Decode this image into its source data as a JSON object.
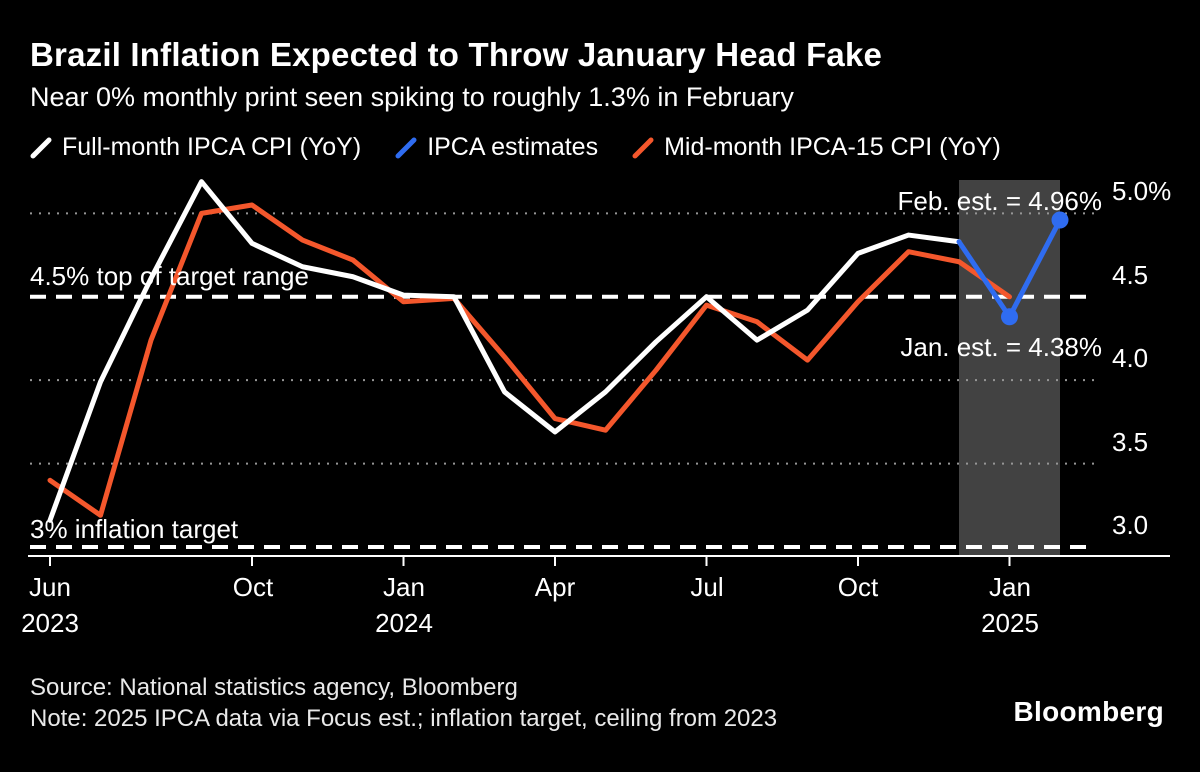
{
  "header": {
    "title": "Brazil Inflation Expected to Throw January Head Fake",
    "subtitle": "Near 0% monthly print seen spiking to roughly 1.3% in February"
  },
  "legend": {
    "items": [
      {
        "label": "Full-month IPCA CPI (YoY)",
        "color": "#ffffff"
      },
      {
        "label": "IPCA estimates",
        "color": "#2f6cf0"
      },
      {
        "label": "Mid-month IPCA-15 CPI (YoY)",
        "color": "#f4572c"
      }
    ]
  },
  "chart_data": {
    "type": "line",
    "title": "Brazil Inflation Expected to Throw January Head Fake",
    "subtitle": "Near 0% monthly print seen spiking to roughly 1.3% in February",
    "x": [
      "Jun 2023",
      "Jul 2023",
      "Aug 2023",
      "Sep 2023",
      "Oct 2023",
      "Nov 2023",
      "Dec 2023",
      "Jan 2024",
      "Feb 2024",
      "Mar 2024",
      "Apr 2024",
      "May 2024",
      "Jun 2024",
      "Jul 2024",
      "Aug 2024",
      "Sep 2024",
      "Oct 2024",
      "Nov 2024",
      "Dec 2024",
      "Jan 2025",
      "Feb 2025"
    ],
    "ylim": [
      3.0,
      5.2
    ],
    "unit": "%",
    "grid": "dotted horizontal",
    "legend_position": "top",
    "yticks": [
      {
        "value": 5.0,
        "label": "5.0%"
      },
      {
        "value": 4.5,
        "label": "4.5"
      },
      {
        "value": 4.0,
        "label": "4.0"
      },
      {
        "value": 3.5,
        "label": "3.5"
      },
      {
        "value": 3.0,
        "label": "3.0"
      }
    ],
    "xticks": [
      {
        "index": 0,
        "label": "Jun",
        "year": "2023"
      },
      {
        "index": 4,
        "label": "Oct",
        "year": ""
      },
      {
        "index": 7,
        "label": "Jan",
        "year": "2024"
      },
      {
        "index": 10,
        "label": "Apr",
        "year": ""
      },
      {
        "index": 13,
        "label": "Jul",
        "year": ""
      },
      {
        "index": 16,
        "label": "Oct",
        "year": ""
      },
      {
        "index": 19,
        "label": "Jan",
        "year": "2025"
      }
    ],
    "gridlines": [
      5.0,
      4.0,
      3.5
    ],
    "reference_lines": [
      {
        "value": 4.5,
        "label": "4.5% top of target range"
      },
      {
        "value": 3.0,
        "label": "3% inflation target"
      }
    ],
    "series": [
      {
        "name": "Mid-month IPCA-15 CPI (YoY)",
        "color": "#f4572c",
        "values": [
          3.4,
          3.19,
          4.24,
          5.0,
          5.05,
          4.84,
          4.72,
          4.47,
          4.49,
          4.14,
          3.77,
          3.7,
          4.06,
          4.45,
          4.35,
          4.12,
          4.47,
          4.77,
          4.71,
          4.5,
          null
        ],
        "markers": []
      },
      {
        "name": "Full-month IPCA CPI (YoY)",
        "color": "#ffffff",
        "values": [
          3.16,
          3.99,
          4.61,
          5.19,
          4.82,
          4.68,
          4.62,
          4.51,
          4.5,
          3.93,
          3.69,
          3.93,
          4.23,
          4.5,
          4.24,
          4.42,
          4.76,
          4.87,
          4.83,
          null,
          null
        ],
        "markers": []
      },
      {
        "name": "IPCA estimates",
        "color": "#2f6cf0",
        "values": [
          null,
          null,
          null,
          null,
          null,
          null,
          null,
          null,
          null,
          null,
          null,
          null,
          null,
          null,
          null,
          null,
          null,
          null,
          4.83,
          4.38,
          4.96
        ],
        "markers": [
          19,
          20
        ]
      }
    ],
    "annotations": [
      {
        "text": "Feb. est. = 4.96%",
        "x": "Feb 2025",
        "y": 4.96
      },
      {
        "text": "Jan. est. = 4.38%",
        "x": "Jan 2025",
        "y": 4.38
      }
    ],
    "highlight_band": {
      "from_index": 18,
      "to_index": 20
    },
    "colors": {
      "band": "#424242",
      "grid": "#969696",
      "axis": "#ffffff",
      "background": "#000000"
    }
  },
  "footer": {
    "source": "Source: National statistics agency, Bloomberg",
    "note": "Note: 2025 IPCA data via Focus est.; inflation target, ceiling from 2023",
    "brand": "Bloomberg"
  }
}
